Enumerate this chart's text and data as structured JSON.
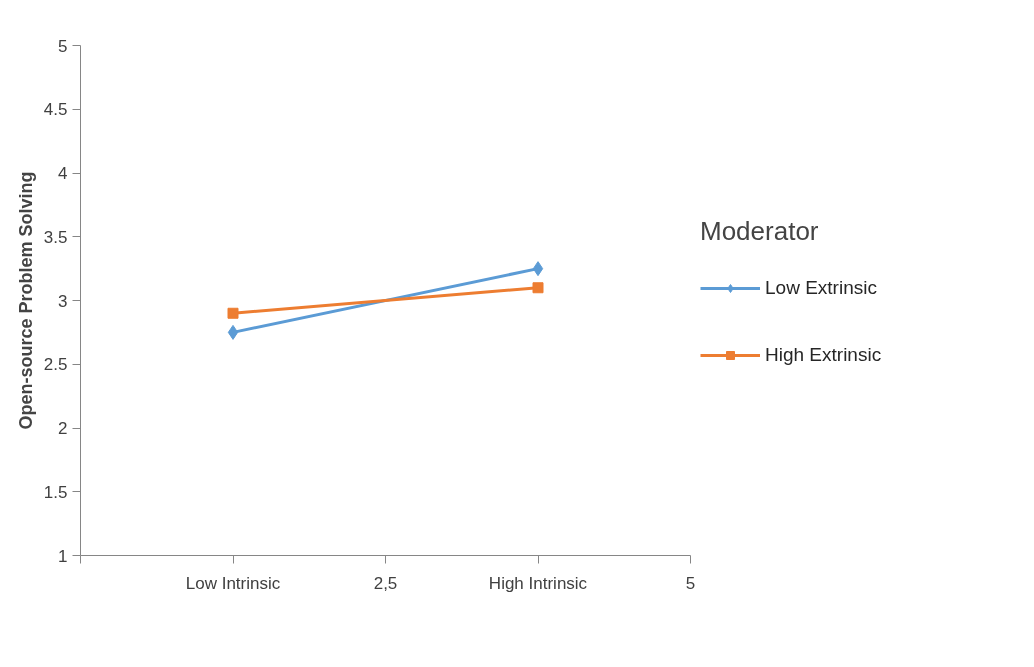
{
  "chart_data": {
    "type": "line",
    "ylabel": "Open-source Problem Solving",
    "legend_title": "Moderator",
    "legend": "right",
    "grid": false,
    "xlim": [
      0,
      5
    ],
    "xticks": [
      {
        "value": 0,
        "label": null
      },
      {
        "value": 1.25,
        "label": "Low Intrinsic"
      },
      {
        "value": 2.5,
        "label": "2,5"
      },
      {
        "value": 3.75,
        "label": "High Intrinsic"
      },
      {
        "value": 5,
        "label": "5"
      }
    ],
    "x": [
      1.25,
      3.75
    ],
    "ylim": [
      1,
      5
    ],
    "yticks": [
      1,
      1.5,
      2,
      2.5,
      3,
      3.5,
      4,
      4.5,
      5
    ],
    "series": [
      {
        "name": "Low Extrinsic",
        "color": "#5b9bd5",
        "marker": "diamond",
        "values": [
          2.75,
          3.25
        ]
      },
      {
        "name": "High Extrinsic",
        "color": "#ed7d31",
        "marker": "square",
        "values": [
          2.9,
          3.1
        ]
      }
    ]
  }
}
